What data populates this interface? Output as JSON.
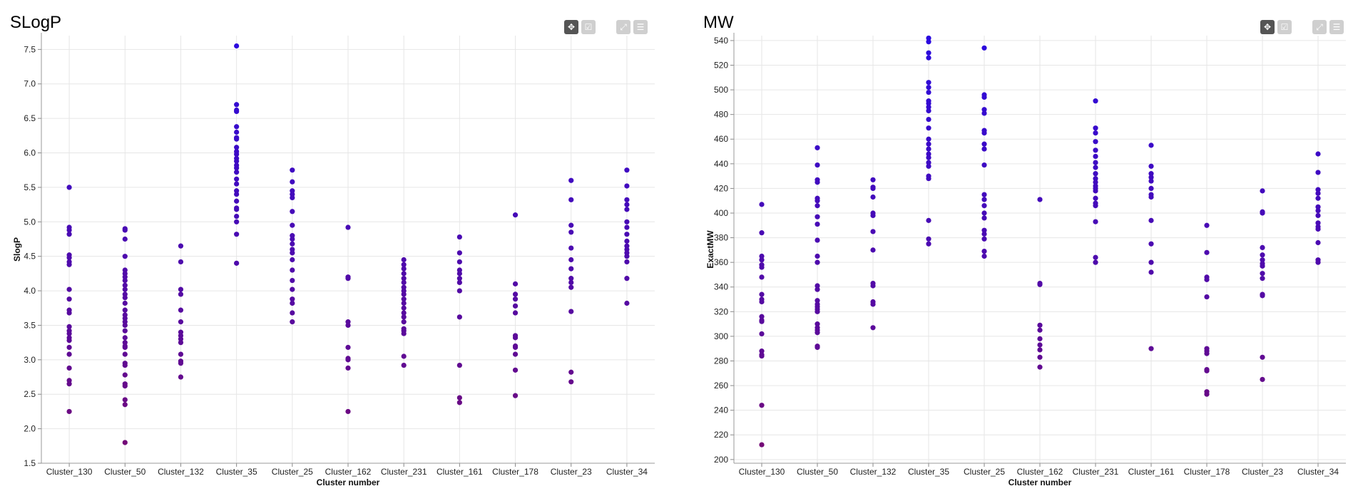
{
  "charts": [
    {
      "title": "SLogP",
      "toolbar": {
        "move_icon": "move-icon",
        "select_icon": "select-icon",
        "fullscreen_icon": "fullscreen-icon",
        "menu_icon": "menu-icon"
      }
    },
    {
      "title": "MW",
      "toolbar": {
        "move_icon": "move-icon",
        "select_icon": "select-icon",
        "fullscreen_icon": "fullscreen-icon",
        "menu_icon": "menu-icon"
      }
    }
  ],
  "chart_data": [
    {
      "type": "scatter",
      "title": "SLogP",
      "xlabel": "Cluster number",
      "ylabel": "SlogP",
      "ylim": [
        1.5,
        7.7
      ],
      "yticks": [
        1.5,
        2.0,
        2.5,
        3.0,
        3.5,
        4.0,
        4.5,
        5.0,
        5.5,
        6.0,
        6.5,
        7.0,
        7.5
      ],
      "categories": [
        "Cluster_130",
        "Cluster_50",
        "Cluster_132",
        "Cluster_35",
        "Cluster_25",
        "Cluster_162",
        "Cluster_231",
        "Cluster_161",
        "Cluster_178",
        "Cluster_23",
        "Cluster_34"
      ],
      "color_scale": [
        "#7a0a6e",
        "#2a0ae0"
      ],
      "grid": true,
      "points": [
        [
          5.5,
          4.92,
          4.88,
          4.82,
          4.52,
          4.48,
          4.42,
          4.38,
          4.02,
          3.88,
          3.72,
          3.68,
          3.48,
          3.42,
          3.38,
          3.32,
          3.28,
          3.18,
          3.08,
          2.88,
          2.7,
          2.65,
          2.25
        ],
        [
          4.9,
          4.88,
          4.75,
          4.5,
          4.3,
          4.25,
          4.2,
          4.15,
          4.08,
          4.02,
          3.95,
          3.9,
          3.82,
          3.72,
          3.65,
          3.6,
          3.55,
          3.5,
          3.42,
          3.32,
          3.25,
          3.2,
          3.18,
          3.08,
          2.95,
          2.92,
          2.78,
          2.65,
          2.62,
          2.42,
          2.35,
          1.8
        ],
        [
          4.65,
          4.42,
          4.02,
          3.95,
          3.72,
          3.55,
          3.4,
          3.35,
          3.3,
          3.25,
          3.08,
          2.98,
          2.95,
          2.75
        ],
        [
          7.55,
          6.7,
          6.62,
          6.6,
          6.38,
          6.3,
          6.22,
          6.2,
          6.08,
          6.02,
          5.98,
          5.92,
          5.88,
          5.82,
          5.78,
          5.72,
          5.62,
          5.55,
          5.45,
          5.4,
          5.3,
          5.2,
          5.18,
          5.08,
          5.0,
          4.82,
          4.4
        ],
        [
          5.75,
          5.58,
          5.45,
          5.4,
          5.35,
          5.15,
          4.95,
          4.8,
          4.75,
          4.68,
          4.6,
          4.55,
          4.45,
          4.3,
          4.15,
          4.02,
          3.88,
          3.82,
          3.68,
          3.55
        ],
        [
          4.92,
          4.2,
          4.18,
          3.55,
          3.5,
          3.18,
          3.02,
          3.0,
          2.88,
          2.25
        ],
        [
          4.45,
          4.38,
          4.32,
          4.25,
          4.18,
          4.12,
          4.05,
          4.0,
          3.95,
          3.88,
          3.82,
          3.75,
          3.68,
          3.62,
          3.55,
          3.45,
          3.42,
          3.38,
          3.05,
          2.92
        ],
        [
          4.78,
          4.55,
          4.42,
          4.3,
          4.25,
          4.18,
          4.12,
          4.0,
          3.62,
          2.92,
          2.45,
          2.38
        ],
        [
          5.1,
          4.1,
          3.95,
          3.88,
          3.78,
          3.68,
          3.35,
          3.32,
          3.2,
          3.18,
          3.08,
          2.85,
          2.48
        ],
        [
          5.6,
          5.32,
          4.95,
          4.85,
          4.62,
          4.45,
          4.32,
          4.18,
          4.12,
          4.05,
          3.7,
          2.82,
          2.68
        ],
        [
          5.75,
          5.52,
          5.32,
          5.25,
          5.18,
          5.0,
          4.92,
          4.82,
          4.72,
          4.65,
          4.6,
          4.55,
          4.5,
          4.42,
          4.18,
          3.82
        ]
      ]
    },
    {
      "type": "scatter",
      "title": "MW",
      "xlabel": "Cluster number",
      "ylabel": "ExactMW",
      "ylim": [
        197,
        544
      ],
      "yticks": [
        200,
        220,
        240,
        260,
        280,
        300,
        320,
        340,
        360,
        380,
        400,
        420,
        440,
        460,
        480,
        500,
        520,
        540
      ],
      "categories": [
        "Cluster_130",
        "Cluster_50",
        "Cluster_132",
        "Cluster_35",
        "Cluster_25",
        "Cluster_162",
        "Cluster_231",
        "Cluster_161",
        "Cluster_178",
        "Cluster_23",
        "Cluster_34"
      ],
      "color_scale": [
        "#7a0a6e",
        "#2a0ae0"
      ],
      "grid": true,
      "points": [
        [
          407,
          384,
          365,
          362,
          358,
          356,
          348,
          334,
          330,
          328,
          316,
          313,
          312,
          302,
          288,
          285,
          284,
          244,
          212
        ],
        [
          453,
          439,
          427,
          425,
          412,
          410,
          406,
          397,
          391,
          378,
          365,
          360,
          341,
          338,
          329,
          326,
          324,
          322,
          320,
          310,
          307,
          305,
          303,
          292,
          291
        ],
        [
          427,
          421,
          420,
          413,
          400,
          398,
          385,
          370,
          343,
          341,
          328,
          326,
          307
        ],
        [
          542,
          539,
          530,
          526,
          506,
          502,
          498,
          491,
          489,
          486,
          483,
          476,
          469,
          460,
          456,
          452,
          448,
          445,
          441,
          438,
          430,
          428,
          394,
          379,
          375
        ],
        [
          534,
          496,
          494,
          484,
          481,
          467,
          465,
          456,
          452,
          439,
          415,
          411,
          406,
          400,
          396,
          386,
          383,
          379,
          369,
          365
        ],
        [
          411,
          343,
          342,
          309,
          305,
          298,
          293,
          289,
          283,
          275
        ],
        [
          491,
          469,
          465,
          458,
          451,
          446,
          441,
          437,
          432,
          428,
          425,
          422,
          420,
          418,
          412,
          408,
          406,
          393,
          364,
          360
        ],
        [
          455,
          438,
          432,
          429,
          426,
          420,
          415,
          413,
          394,
          375,
          360,
          352,
          290
        ],
        [
          390,
          368,
          348,
          346,
          332,
          290,
          288,
          286,
          273,
          272,
          255,
          253
        ],
        [
          418,
          401,
          400,
          372,
          366,
          362,
          359,
          357,
          351,
          347,
          334,
          333,
          283,
          265
        ],
        [
          448,
          433,
          419,
          416,
          412,
          405,
          402,
          398,
          392,
          389,
          387,
          376,
          362,
          360
        ]
      ]
    }
  ]
}
